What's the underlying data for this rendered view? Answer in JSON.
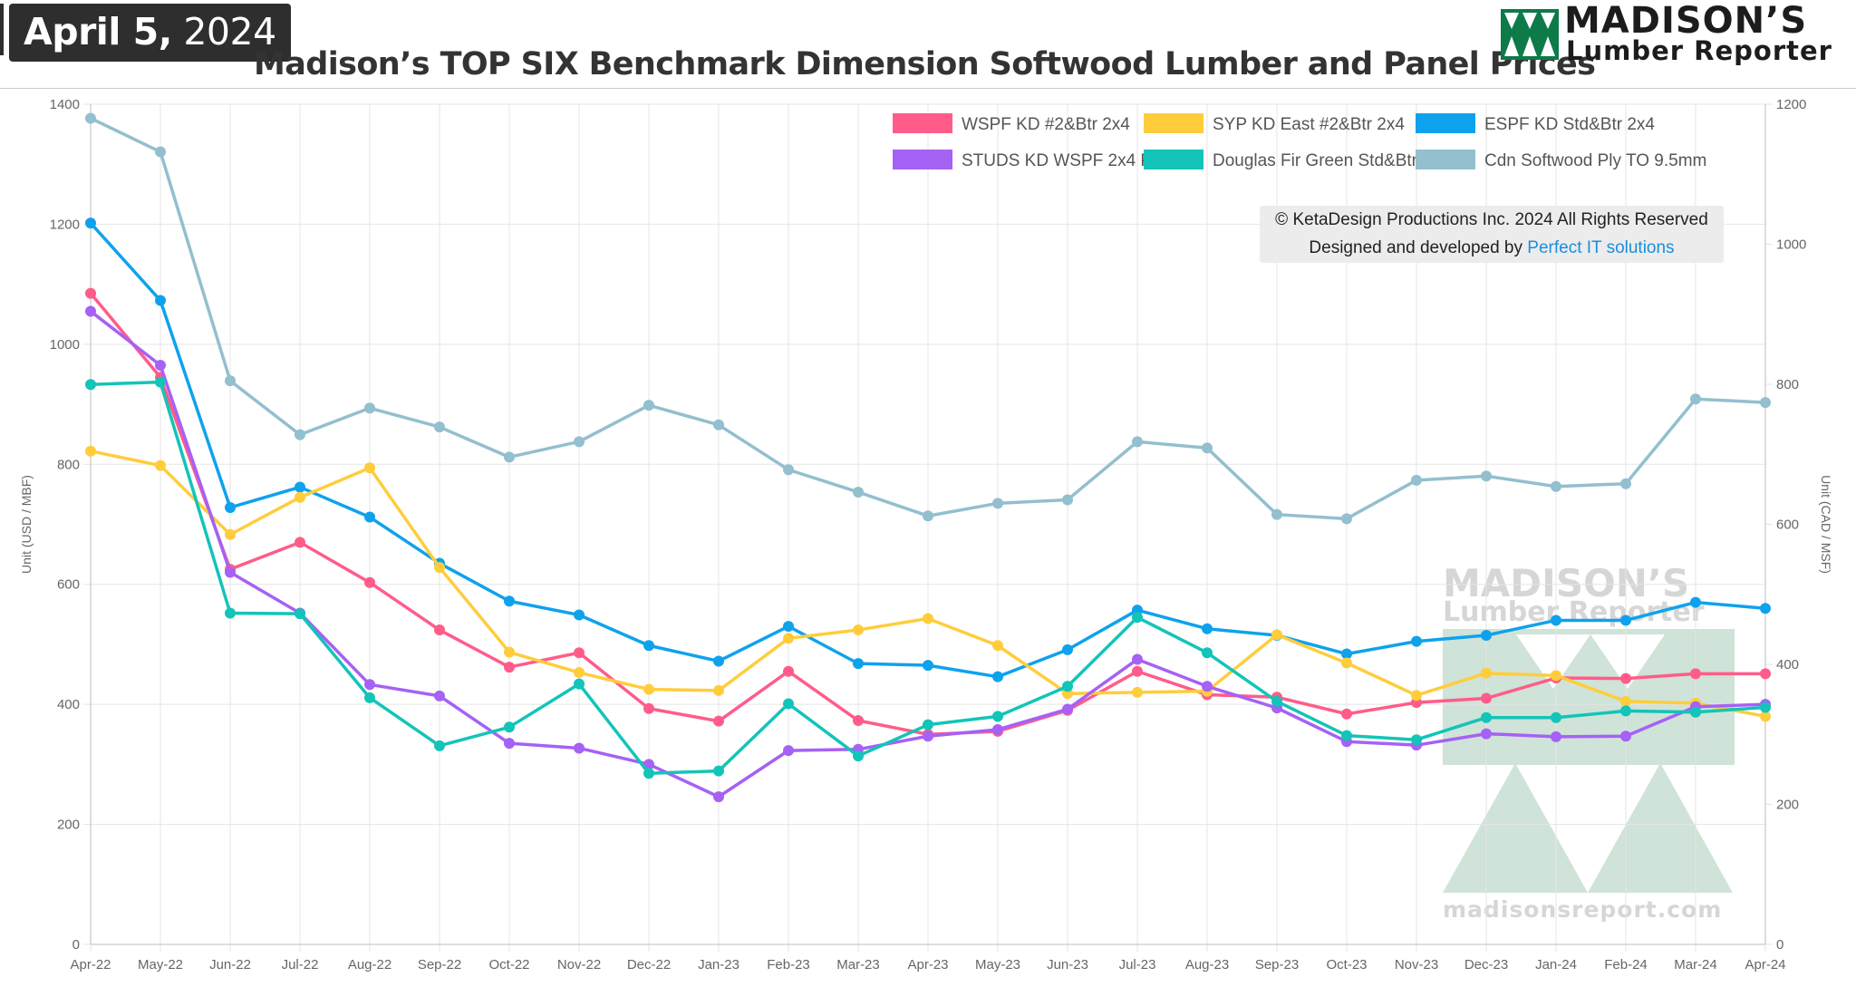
{
  "header": {
    "date_month_day": "April 5,",
    "date_year": "2024",
    "title": "Madison’s TOP SIX Benchmark Dimension Softwood Lumber and Panel Prices",
    "logo_name": "MADISON’S",
    "logo_sub": "Lumber Reporter"
  },
  "copyright": {
    "line1": "© KetaDesign Productions Inc. 2024 All Rights Reserved",
    "line2_prefix": "Designed and developed by",
    "line2_link": "Perfect IT solutions"
  },
  "watermark": {
    "name": "MADISON’S",
    "sub": "Lumber Reporter",
    "site": "madisonsreport.com"
  },
  "colors": {
    "accent_bar": "#2e2e2e",
    "watermark": "#cfe3d8",
    "logo_green": "#0d7a4a"
  },
  "chart_data": {
    "type": "line",
    "title": "Madison’s TOP SIX Benchmark Dimension Softwood Lumber and Panel Prices",
    "categories": [
      "Apr-22",
      "May-22",
      "Jun-22",
      "Jul-22",
      "Aug-22",
      "Sep-22",
      "Oct-22",
      "Nov-22",
      "Dec-22",
      "Jan-23",
      "Feb-23",
      "Mar-23",
      "Apr-23",
      "May-23",
      "Jun-23",
      "Jul-23",
      "Aug-23",
      "Sep-23",
      "Oct-23",
      "Nov-23",
      "Dec-23",
      "Jan-24",
      "Feb-24",
      "Mar-24",
      "Apr-24"
    ],
    "ylabel": "Unit (USD / MBF)",
    "y2label": "Unit (CAD / MSF)",
    "ylim": [
      0,
      1400
    ],
    "y2lim": [
      0,
      1200
    ],
    "yticks": [
      0,
      200,
      400,
      600,
      800,
      1000,
      1200,
      1400
    ],
    "y2ticks": [
      0,
      200,
      400,
      600,
      800,
      1000,
      1200
    ],
    "grid": true,
    "legend_position": "top-right",
    "series": [
      {
        "name": "Cdn Softwood Ply TO 9.5mm",
        "color": "#93bfcf",
        "axis": "right",
        "values": [
          1180,
          1132,
          805,
          728,
          766,
          739,
          696,
          718,
          770,
          742,
          678,
          646,
          612,
          630,
          635,
          718,
          709,
          614,
          608,
          663,
          669,
          654,
          658,
          779,
          774
        ]
      },
      {
        "name": "ESPF KD Std&Btr 2x4",
        "color": "#0ea2ed",
        "axis": "left",
        "values": [
          1202,
          1073,
          728,
          762,
          712,
          635,
          572,
          549,
          498,
          472,
          530,
          468,
          465,
          446,
          491,
          557,
          526,
          515,
          484,
          505,
          515,
          540,
          540,
          570,
          560
        ]
      },
      {
        "name": "WSPF KD #2&Btr 2x4",
        "color": "#ff5c8a",
        "axis": "left",
        "values": [
          1085,
          945,
          625,
          670,
          603,
          524,
          462,
          486,
          393,
          372,
          455,
          373,
          350,
          355,
          390,
          455,
          416,
          412,
          384,
          403,
          410,
          444,
          443,
          451,
          451
        ]
      },
      {
        "name": "SYP KD East #2&Btr 2x4",
        "color": "#ffcd3c",
        "axis": "left",
        "values": [
          822,
          798,
          683,
          745,
          794,
          628,
          487,
          453,
          425,
          423,
          510,
          524,
          543,
          498,
          418,
          420,
          422,
          516,
          469,
          415,
          452,
          448,
          405,
          402,
          380
        ]
      },
      {
        "name": "STUDS KD WSPF 2x4 PET",
        "color": "#a661f5",
        "axis": "left",
        "values": [
          1055,
          965,
          620,
          552,
          433,
          414,
          335,
          327,
          300,
          246,
          323,
          325,
          347,
          358,
          392,
          475,
          430,
          394,
          338,
          332,
          351,
          346,
          347,
          396,
          400
        ]
      },
      {
        "name": "Douglas Fir Green Std&Btr 2x4",
        "color": "#13c4b8",
        "axis": "left",
        "values": [
          933,
          937,
          552,
          551,
          411,
          331,
          362,
          434,
          285,
          289,
          401,
          314,
          366,
          380,
          430,
          545,
          486,
          405,
          348,
          341,
          378,
          378,
          389,
          387,
          395
        ]
      }
    ],
    "legend_order": [
      [
        "WSPF KD #2&Btr 2x4",
        "SYP KD East #2&Btr 2x4",
        "ESPF KD Std&Btr 2x4"
      ],
      [
        "STUDS KD WSPF 2x4 PET",
        "Douglas Fir Green Std&Btr 2x4",
        "Cdn Softwood Ply TO 9.5mm"
      ]
    ]
  }
}
